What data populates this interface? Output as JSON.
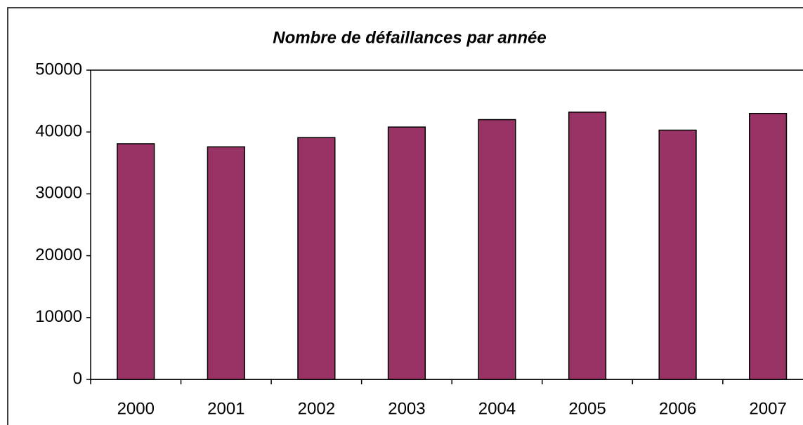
{
  "chart_data": {
    "type": "bar",
    "title": "Nombre de défaillances par année",
    "categories": [
      "2000",
      "2001",
      "2002",
      "2003",
      "2004",
      "2005",
      "2006",
      "2007"
    ],
    "values": [
      38100,
      37600,
      39100,
      40800,
      42000,
      43200,
      40300,
      43000
    ],
    "color": "#993366",
    "ylim": [
      0,
      50000
    ],
    "yticks": [
      0,
      10000,
      20000,
      30000,
      40000,
      50000
    ],
    "grid": false
  }
}
